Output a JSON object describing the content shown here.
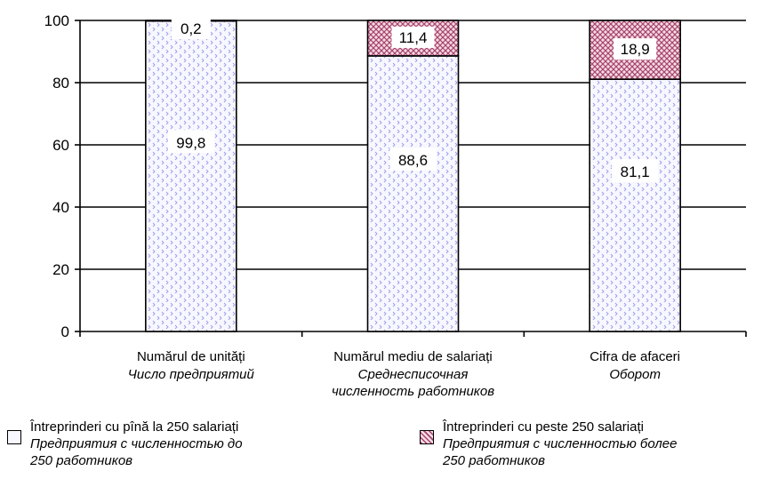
{
  "chart_data": {
    "type": "bar",
    "stacked": true,
    "categories": [
      {
        "ro": "Numărul de unități",
        "ru": [
          "Число предприятий"
        ]
      },
      {
        "ro": "Numărul mediu de salariați",
        "ru": [
          "Среднесписочная",
          "численность работников"
        ]
      },
      {
        "ro": "Cifra de afaceri",
        "ru": [
          "Оборот"
        ]
      }
    ],
    "series": [
      {
        "name_ro": "Întreprinderi cu pînă la 250 salariați",
        "name_ru": [
          "Предприятия с численностью до",
          "250 работников"
        ],
        "values": [
          99.8,
          88.6,
          81.1
        ],
        "labels": [
          "99,8",
          "88,6",
          "81,1"
        ],
        "color": "#b9b9f2"
      },
      {
        "name_ro": "Întreprinderi cu peste 250 salariați",
        "name_ru": [
          "Предприятия с численностью более",
          "250 работников"
        ],
        "values": [
          0.2,
          11.4,
          18.9
        ],
        "labels": [
          "0,2",
          "11,4",
          "18,9"
        ],
        "color": "#a8446c"
      }
    ],
    "ylim": [
      0,
      100
    ],
    "yticks": [
      0,
      20,
      40,
      60,
      80,
      100
    ],
    "grid": true,
    "legend_position": "bottom"
  }
}
